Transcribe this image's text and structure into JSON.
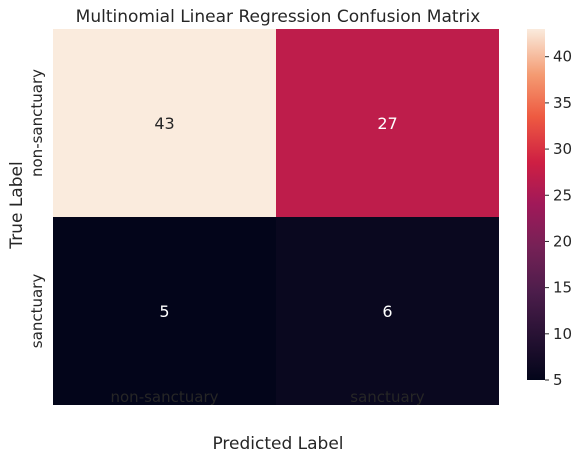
{
  "chart_data": {
    "type": "heatmap",
    "title": "Multinomial Linear Regression Confusion Matrix",
    "xlabel": "Predicted Label",
    "ylabel": "True Label",
    "x_categories": [
      "non-sanctuary",
      "sanctuary"
    ],
    "y_categories": [
      "non-sanctuary",
      "sanctuary"
    ],
    "values": [
      [
        43,
        27
      ],
      [
        5,
        6
      ]
    ],
    "colorbar": {
      "min": 5,
      "max": 43,
      "ticks": [
        5,
        10,
        15,
        20,
        25,
        30,
        35,
        40
      ],
      "colormap": "rocket"
    },
    "annotations": true
  }
}
